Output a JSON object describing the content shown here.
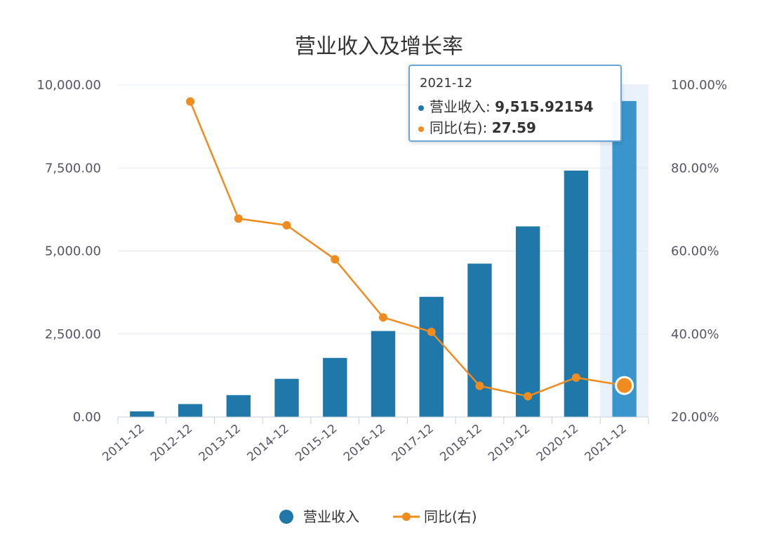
{
  "chart_data": {
    "type": "bar",
    "title": "营业收入及增长率",
    "categories": [
      "2011-12",
      "2012-12",
      "2013-12",
      "2014-12",
      "2015-12",
      "2016-12",
      "2017-12",
      "2018-12",
      "2019-12",
      "2020-12",
      "2021-12"
    ],
    "series": [
      {
        "name": "营业收入",
        "type": "bar",
        "axis": "left",
        "color": "#1f77aa",
        "values": [
          170,
          390,
          660,
          1150,
          1780,
          2590,
          3620,
          4620,
          5740,
          7420,
          9515.92154
        ]
      },
      {
        "name": "同比(右)",
        "type": "line",
        "axis": "right",
        "color": "#f08c1e",
        "values": [
          null,
          96.0,
          67.8,
          66.2,
          58.0,
          44.0,
          40.5,
          27.5,
          25.0,
          29.5,
          27.59
        ]
      }
    ],
    "y_left": {
      "min": 0,
      "max": 10000,
      "ticks": [
        "0.00",
        "2,500.00",
        "5,000.00",
        "7,500.00",
        "10,000.00"
      ],
      "tick_values": [
        0,
        2500,
        5000,
        7500,
        10000
      ]
    },
    "y_right": {
      "min": 20,
      "max": 100,
      "ticks": [
        "20.00%",
        "40.00%",
        "60.00%",
        "80.00%",
        "100.00%"
      ],
      "tick_values": [
        20,
        40,
        60,
        80,
        100
      ]
    },
    "grid": true,
    "legend": {
      "placement": "bottom"
    },
    "highlight_index": 10
  },
  "tooltip": {
    "title": "2021-12",
    "revenue_label": "营业收入:",
    "revenue_value": "9,515.92154",
    "growth_label": "同比(右):",
    "growth_value": "27.59"
  },
  "colors": {
    "bar": "#1f77aa",
    "bar_highlight": "#3a95cc",
    "line": "#f08c1e",
    "highlight_band": "#e9f1fb",
    "grid": "#e3e8f0"
  }
}
